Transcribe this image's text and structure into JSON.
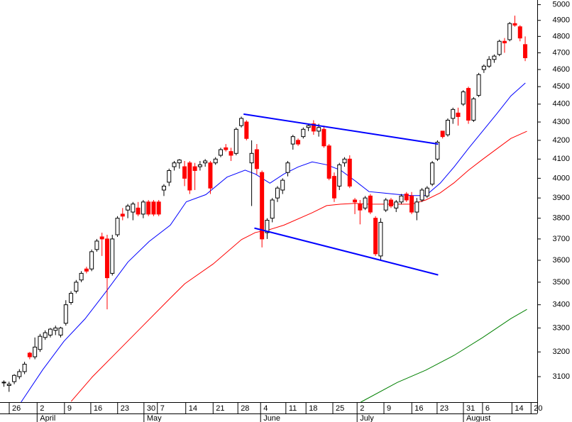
{
  "chart_data": {
    "type": "candlestick",
    "log_scale": true,
    "up_color": "#ffffff",
    "down_color": "#ff0000",
    "open": [
      3075,
      3065,
      3080,
      3100,
      3120,
      3195,
      3180,
      3210,
      3260,
      3270,
      3290,
      3270,
      3320,
      3410,
      3460,
      3510,
      3560,
      3560,
      3650,
      3710,
      3700,
      3540,
      3720,
      3820,
      3840,
      3830,
      3850,
      3820,
      3880,
      3880,
      3880,
      3940,
      3980,
      4060,
      4080,
      4060,
      4080,
      4060,
      4060,
      4080,
      4080,
      4080,
      4120,
      4160,
      4140,
      4130,
      4280,
      4300,
      4080,
      4150,
      4030,
      3730,
      3800,
      3900,
      3940,
      4030,
      4180,
      4200,
      4220,
      4270,
      4290,
      4250,
      4260,
      4170,
      4010,
      3960,
      4080,
      4100,
      3890,
      3870,
      3850,
      3910,
      3800,
      3620,
      3840,
      3890,
      3850,
      3880,
      3920,
      3910,
      3830,
      3890,
      3910,
      3970,
      4100,
      4250,
      4230,
      4320,
      4350,
      4400,
      4490,
      4310,
      4450,
      4600,
      4620,
      4660,
      4690,
      4770,
      4780,
      4880,
      4860,
      4750
    ],
    "high": [
      3085,
      3080,
      3110,
      3130,
      3160,
      3200,
      3260,
      3275,
      3290,
      3300,
      3310,
      3305,
      3420,
      3460,
      3510,
      3550,
      3570,
      3650,
      3700,
      3730,
      3720,
      3720,
      3810,
      3850,
      3870,
      3880,
      3880,
      3890,
      3890,
      3890,
      3890,
      3970,
      4050,
      4090,
      4100,
      4090,
      4090,
      4080,
      4090,
      4100,
      4090,
      4110,
      4160,
      4180,
      4160,
      4270,
      4330,
      4310,
      4200,
      4180,
      4040,
      3800,
      3900,
      3960,
      4000,
      4090,
      4230,
      4210,
      4270,
      4290,
      4310,
      4290,
      4280,
      4180,
      4030,
      4080,
      4110,
      4120,
      3900,
      3890,
      3910,
      3920,
      3810,
      3800,
      3900,
      3900,
      3890,
      3920,
      3930,
      3930,
      3900,
      3950,
      3960,
      4090,
      4200,
      4250,
      4320,
      4380,
      4380,
      4480,
      4500,
      4440,
      4580,
      4630,
      4680,
      4690,
      4780,
      4790,
      4890,
      4930,
      4870,
      4800
    ],
    "low": [
      3060,
      3040,
      3070,
      3090,
      3110,
      3170,
      3170,
      3200,
      3250,
      3260,
      3270,
      3260,
      3310,
      3400,
      3450,
      3500,
      3540,
      3550,
      3640,
      3620,
      3380,
      3530,
      3710,
      3790,
      3800,
      3790,
      3810,
      3800,
      3810,
      3810,
      3810,
      3910,
      3960,
      4040,
      4050,
      3960,
      3920,
      3940,
      4040,
      4060,
      3920,
      4070,
      4110,
      4140,
      4090,
      4120,
      4270,
      4200,
      3860,
      4020,
      3660,
      3700,
      3780,
      3880,
      3920,
      4010,
      4150,
      4170,
      4210,
      4250,
      4230,
      4220,
      4160,
      3990,
      3880,
      3940,
      4060,
      3950,
      3820,
      3770,
      3840,
      3820,
      3620,
      3600,
      3830,
      3850,
      3830,
      3870,
      3880,
      3820,
      3790,
      3880,
      3900,
      3960,
      4090,
      4210,
      4220,
      4290,
      4280,
      4390,
      4290,
      4300,
      4440,
      4580,
      4610,
      4640,
      4680,
      4700,
      4770,
      4860,
      4770,
      4650
    ],
    "close": [
      3078,
      3070,
      3105,
      3120,
      3150,
      3180,
      3220,
      3265,
      3280,
      3295,
      3300,
      3300,
      3400,
      3450,
      3500,
      3540,
      3550,
      3640,
      3690,
      3700,
      3520,
      3700,
      3800,
      3810,
      3860,
      3870,
      3820,
      3880,
      3820,
      3820,
      3820,
      3960,
      4040,
      4080,
      4095,
      4000,
      3940,
      4040,
      4070,
      4090,
      3950,
      4100,
      4150,
      4150,
      4120,
      4260,
      4320,
      4210,
      4130,
      4050,
      3700,
      3790,
      3890,
      3950,
      3990,
      4080,
      4220,
      4180,
      4260,
      4280,
      4250,
      4270,
      4170,
      4000,
      3900,
      4070,
      4100,
      3960,
      3880,
      3840,
      3900,
      3830,
      3630,
      3780,
      3890,
      3860,
      3880,
      3910,
      3890,
      3830,
      3880,
      3940,
      3950,
      4080,
      4190,
      4220,
      4310,
      4370,
      4330,
      4470,
      4310,
      4430,
      4570,
      4620,
      4660,
      4680,
      4770,
      4760,
      4880,
      4870,
      4790,
      4670
    ],
    "series": [
      {
        "color": "#0000ff",
        "x": [
          3.4,
          7.6,
          11.7,
          15.8,
          19.9,
          24.1,
          28.2,
          32.3,
          35.4,
          39.2,
          43.3,
          46.8,
          48.8,
          51.6,
          54.3,
          57.1,
          59.8,
          62.6,
          65.3,
          68.1,
          70.8,
          73.6,
          76.3,
          79.1,
          81.8,
          84.6,
          87.3,
          90.1,
          92.8,
          95.6,
          98.3,
          101.1
        ],
        "values": [
          3000,
          3128,
          3244,
          3339,
          3459,
          3592,
          3688,
          3766,
          3881,
          3917,
          4006,
          4042,
          4022,
          3975,
          4022,
          4059,
          4085,
          4070,
          4042,
          3987,
          3932,
          3925,
          3918,
          3912,
          3912,
          3975,
          4059,
          4157,
          4249,
          4347,
          4447,
          4521
        ]
      },
      {
        "color": "#ff0000",
        "x": [
          13.1,
          17.2,
          21.3,
          26.8,
          32.3,
          35.1,
          40.6,
          46.1,
          48.8,
          51.6,
          54.3,
          59.8,
          62.6,
          65.3,
          68.1,
          70.8,
          76.3,
          79.1,
          81.8,
          84.6,
          87.3,
          90.1,
          92.8,
          95.6,
          98.3,
          101.4
        ],
        "values": [
          3003,
          3099,
          3185,
          3305,
          3429,
          3493,
          3583,
          3697,
          3731,
          3745,
          3766,
          3827,
          3862,
          3869,
          3873,
          3869,
          3869,
          3869,
          3890,
          3926,
          3977,
          4042,
          4098,
          4155,
          4210,
          4249
        ]
      },
      {
        "color": "#008000",
        "x": [
          69.2,
          76.3,
          81.8,
          87.3,
          92.8,
          98.3,
          101.4
        ],
        "values": [
          3000,
          3077,
          3126,
          3186,
          3259,
          3340,
          3380
        ]
      }
    ],
    "trendlines": [
      {
        "color": "#0000ff",
        "x": [
          46.5,
          84.2
        ],
        "values": [
          4344,
          4180
        ]
      },
      {
        "color": "#0000ff",
        "x": [
          48.6,
          84.2
        ],
        "values": [
          3752,
          3533
        ]
      }
    ],
    "xlim": [
      -0.69,
      103.4
    ],
    "xticks": [
      {
        "value": 1.1,
        "label": "26"
      },
      {
        "value": 6.5,
        "label": "2"
      },
      {
        "value": 11.8,
        "label": "9"
      },
      {
        "value": 16.9,
        "label": "16"
      },
      {
        "value": 22.1,
        "label": "23"
      },
      {
        "value": 27.2,
        "label": "30"
      },
      {
        "value": 29.8,
        "label": "7"
      },
      {
        "value": 35.3,
        "label": "14"
      },
      {
        "value": 40.6,
        "label": "21"
      },
      {
        "value": 45.4,
        "label": "28"
      },
      {
        "value": 49.8,
        "label": "4"
      },
      {
        "value": 54.7,
        "label": "11"
      },
      {
        "value": 58.6,
        "label": "18"
      },
      {
        "value": 63.8,
        "label": "25"
      },
      {
        "value": 68.5,
        "label": "2"
      },
      {
        "value": 73.7,
        "label": "9"
      },
      {
        "value": 79.1,
        "label": "16"
      },
      {
        "value": 84.0,
        "label": "23"
      },
      {
        "value": 89.1,
        "label": "31"
      },
      {
        "value": 92.8,
        "label": "6"
      },
      {
        "value": 98.5,
        "label": "14"
      },
      {
        "value": 102.2,
        "label": "20"
      }
    ],
    "month_ticks": [
      {
        "value": 6.5,
        "label": "April"
      },
      {
        "value": 27.2,
        "label": "May"
      },
      {
        "value": 49.8,
        "label": "June"
      },
      {
        "value": 68.5,
        "label": "July"
      },
      {
        "value": 89.1,
        "label": "August"
      }
    ],
    "ylim": [
      3000,
      5030
    ],
    "yticks": [
      3100,
      3200,
      3300,
      3400,
      3500,
      3600,
      3700,
      3800,
      3900,
      4000,
      4100,
      4200,
      4300,
      4400,
      4500,
      4600,
      4700,
      4800,
      4900,
      5000
    ]
  }
}
